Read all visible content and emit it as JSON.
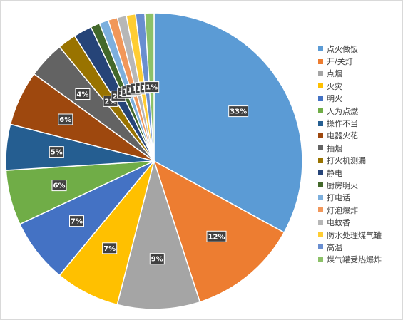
{
  "chart_data": {
    "type": "pie",
    "title": "",
    "categories": [
      "点火做饭",
      "开/关灯",
      "点烟",
      "火灾",
      "明火",
      "人为点燃",
      "操作不当",
      "电器火花",
      "抽烟",
      "打火机测漏",
      "静电",
      "厨房明火",
      "打电话",
      "灯泡爆炸",
      "电蚊香",
      "防水处理煤气罐",
      "高温",
      "煤气罐受热爆炸"
    ],
    "values": [
      33,
      12,
      9,
      7,
      7,
      6,
      5,
      6,
      4,
      2,
      2,
      1,
      1,
      1,
      1,
      1,
      1,
      1
    ],
    "data_labels": [
      "33%",
      "12%",
      "9%",
      "7%",
      "7%",
      "6%",
      "5%",
      "6%",
      "4%",
      "2%",
      "2%",
      "1%",
      "1%",
      "1%",
      "1%",
      "1%",
      "1%",
      "1%"
    ],
    "colors": [
      "#5b9bd5",
      "#ed7d31",
      "#a5a5a5",
      "#ffc000",
      "#4472c4",
      "#70ad47",
      "#255e91",
      "#9e480e",
      "#636363",
      "#997300",
      "#264478",
      "#43682b",
      "#7cafdd",
      "#f1975a",
      "#b7b7b7",
      "#ffcd33",
      "#698ed0",
      "#8cc168"
    ],
    "legend_position": "right",
    "start_angle_deg": 0
  }
}
